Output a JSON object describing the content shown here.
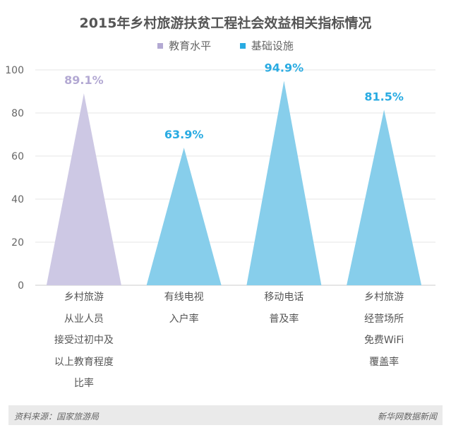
{
  "chart_data": {
    "type": "bar",
    "title": "2015年乡村旅游扶贫工程社会效益相关指标情况",
    "legend": [
      {
        "name": "教育水平",
        "color": "#b3a9d3"
      },
      {
        "name": "基础设施",
        "color": "#29abe2"
      }
    ],
    "categories": [
      [
        "乡村旅游",
        "从业人员",
        "接受过初中及",
        "以上教育程度",
        "比率"
      ],
      [
        "有线电视",
        "入户率"
      ],
      [
        "移动电话",
        "普及率"
      ],
      [
        "乡村旅游",
        "经营场所",
        "免费WiFi",
        "覆盖率"
      ]
    ],
    "values": [
      89.1,
      63.9,
      94.9,
      81.5
    ],
    "value_labels": [
      "89.1%",
      "63.9%",
      "94.9%",
      "81.5%"
    ],
    "series_index": [
      0,
      1,
      1,
      1
    ],
    "bar_colors": [
      "#cdc8e4",
      "#87ceeb",
      "#87ceeb",
      "#87ceeb"
    ],
    "label_colors": [
      "#b3a9d3",
      "#29abe2",
      "#29abe2",
      "#29abe2"
    ],
    "ylim": [
      0,
      100
    ],
    "yticks": [
      0,
      20,
      40,
      60,
      80,
      100
    ],
    "grid": true
  },
  "footer": {
    "source": "资料来源：国家旅游局",
    "brand": "新华网数据新闻"
  }
}
